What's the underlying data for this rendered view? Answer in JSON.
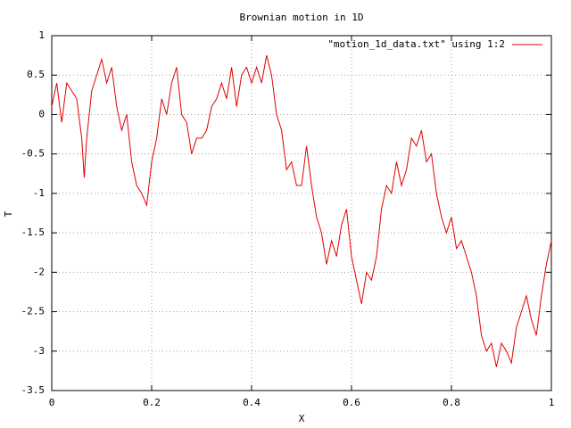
{
  "chart_data": {
    "type": "line",
    "title": "Brownian motion in 1D",
    "x_label": "X",
    "y_label": "T",
    "x": [
      0,
      0.01,
      0.02,
      0.03,
      0.04,
      0.05,
      0.06,
      0.065,
      0.07,
      0.08,
      0.09,
      0.1,
      0.11,
      0.12,
      0.13,
      0.14,
      0.15,
      0.16,
      0.17,
      0.18,
      0.19,
      0.2,
      0.21,
      0.22,
      0.23,
      0.24,
      0.25,
      0.26,
      0.27,
      0.28,
      0.29,
      0.3,
      0.31,
      0.32,
      0.33,
      0.34,
      0.35,
      0.36,
      0.37,
      0.38,
      0.39,
      0.4,
      0.41,
      0.42,
      0.43,
      0.44,
      0.45,
      0.46,
      0.47,
      0.48,
      0.49,
      0.5,
      0.51,
      0.52,
      0.53,
      0.54,
      0.55,
      0.56,
      0.57,
      0.58,
      0.59,
      0.6,
      0.61,
      0.62,
      0.63,
      0.64,
      0.65,
      0.66,
      0.67,
      0.68,
      0.69,
      0.7,
      0.71,
      0.72,
      0.73,
      0.74,
      0.75,
      0.76,
      0.77,
      0.78,
      0.79,
      0.8,
      0.81,
      0.82,
      0.83,
      0.84,
      0.85,
      0.86,
      0.87,
      0.88,
      0.89,
      0.9,
      0.91,
      0.92,
      0.93,
      0.94,
      0.95,
      0.96,
      0.97,
      0.98,
      0.99,
      1
    ],
    "series": [
      {
        "name": "\"motion_1d_data.txt\" using 1:2",
        "color": "#e00000",
        "values": [
          0.1,
          0.4,
          -0.1,
          0.4,
          0.3,
          0.2,
          -0.3,
          -0.8,
          -0.3,
          0.3,
          0.5,
          0.7,
          0.4,
          0.6,
          0.1,
          -0.2,
          0.0,
          -0.6,
          -0.9,
          -1.0,
          -1.15,
          -0.6,
          -0.3,
          0.2,
          0.0,
          0.4,
          0.6,
          0.0,
          -0.1,
          -0.5,
          -0.3,
          -0.3,
          -0.2,
          0.1,
          0.2,
          0.4,
          0.2,
          0.6,
          0.1,
          0.5,
          0.6,
          0.4,
          0.6,
          0.4,
          0.75,
          0.5,
          0.0,
          -0.2,
          -0.7,
          -0.6,
          -0.9,
          -0.9,
          -0.4,
          -0.9,
          -1.3,
          -1.5,
          -1.9,
          -1.6,
          -1.8,
          -1.4,
          -1.2,
          -1.8,
          -2.1,
          -2.4,
          -2.0,
          -2.1,
          -1.8,
          -1.2,
          -0.9,
          -1.0,
          -0.6,
          -0.9,
          -0.7,
          -0.3,
          -0.4,
          -0.2,
          -0.6,
          -0.5,
          -1.0,
          -1.3,
          -1.5,
          -1.3,
          -1.7,
          -1.6,
          -1.8,
          -2.0,
          -2.3,
          -2.8,
          -3.0,
          -2.9,
          -3.2,
          -2.9,
          -3.0,
          -3.15,
          -2.7,
          -2.5,
          -2.3,
          -2.6,
          -2.8,
          -2.3,
          -1.9,
          -1.6
        ]
      }
    ],
    "xlim": [
      0,
      1
    ],
    "ylim": [
      -3.5,
      1
    ],
    "xticks": [
      0,
      0.2,
      0.4,
      0.6,
      0.8,
      1
    ],
    "yticks": [
      1,
      0.5,
      0,
      -0.5,
      -1,
      -1.5,
      -2,
      -2.5,
      -3,
      -3.5
    ],
    "grid": true,
    "legend": "top-right"
  }
}
